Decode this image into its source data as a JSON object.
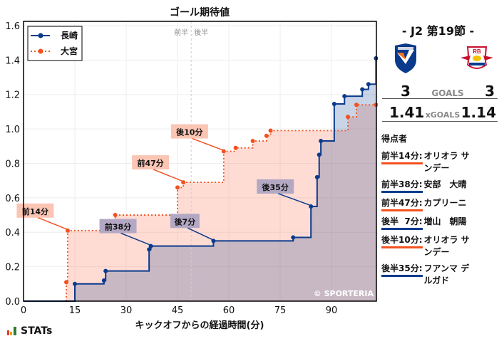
{
  "chart_data": {
    "type": "line",
    "title": "ゴール期待値",
    "xlabel": "キックオフからの経過時間(分)",
    "ylabel": "",
    "xlim": [
      0,
      103
    ],
    "ylim": [
      0,
      1.62
    ],
    "xticks": [
      0,
      15,
      30,
      45,
      60,
      75,
      90
    ],
    "yticks": [
      "0.0",
      "0.2",
      "0.4",
      "0.6",
      "0.8",
      "1.0",
      "1.2",
      "1.4",
      "1.6"
    ],
    "grid": true,
    "legend_position": "upper left",
    "half_marker": {
      "x": 49,
      "labels": [
        "前半",
        "後半"
      ]
    },
    "watermark": "© SPORTERIA",
    "series": [
      {
        "name": "長崎",
        "color": "#0a3a8c",
        "style": "solid step",
        "points": [
          [
            15,
            0.1
          ],
          [
            23.5,
            0.12
          ],
          [
            24,
            0.175
          ],
          [
            36.7,
            0.3
          ],
          [
            37.2,
            0.32
          ],
          [
            55.5,
            0.35
          ],
          [
            78.8,
            0.37
          ],
          [
            84,
            0.55
          ],
          [
            85.8,
            0.72
          ],
          [
            86.4,
            0.85
          ],
          [
            86.9,
            0.93
          ],
          [
            90.8,
            1.145
          ],
          [
            93.8,
            1.19
          ],
          [
            99,
            1.23
          ],
          [
            100.8,
            1.26
          ],
          [
            103,
            1.41
          ]
        ]
      },
      {
        "name": "大宮",
        "color": "#f4511e",
        "style": "dotted step",
        "points": [
          [
            12.5,
            0.11
          ],
          [
            12.9,
            0.41
          ],
          [
            24.6,
            0.45
          ],
          [
            26.8,
            0.5
          ],
          [
            45,
            0.66
          ],
          [
            46.7,
            0.69
          ],
          [
            58.5,
            0.87
          ],
          [
            62,
            0.89
          ],
          [
            67,
            0.93
          ],
          [
            71,
            0.96
          ],
          [
            72.2,
            0.99
          ],
          [
            94.8,
            1.07
          ],
          [
            97.3,
            1.14
          ],
          [
            103,
            1.14
          ]
        ]
      }
    ],
    "annotations": [
      {
        "text": "前14分",
        "team": "大宮",
        "x": 13,
        "y": 0.41
      },
      {
        "text": "前38分",
        "team": "長崎",
        "x": 37.2,
        "y": 0.32
      },
      {
        "text": "前47分",
        "team": "大宮",
        "x": 46.7,
        "y": 0.69
      },
      {
        "text": "後7分",
        "team": "長崎",
        "x": 55.5,
        "y": 0.35
      },
      {
        "text": "後10分",
        "team": "大宮",
        "x": 58.5,
        "y": 0.87
      },
      {
        "text": "後35分",
        "team": "長崎",
        "x": 84,
        "y": 0.55
      }
    ]
  },
  "match": {
    "round": "-  J2 第19節  -",
    "home": {
      "name": "長崎",
      "goals": "3",
      "xg": "1.41",
      "color": "#0a3a8c"
    },
    "away": {
      "name": "大宮",
      "goals": "3",
      "xg": "1.14",
      "color": "#f4511e"
    },
    "goals_label": "GOALS",
    "xgoals_label": "xGOALS"
  },
  "scorers": {
    "header": "得点者",
    "items": [
      {
        "time": "前半 14分",
        "name": "オリオラ サンデー",
        "team": "away"
      },
      {
        "time": "前半 38分",
        "name": "安部　大晴",
        "team": "home"
      },
      {
        "time": "前半 47分",
        "name": "カプリーニ",
        "team": "away"
      },
      {
        "time": "後半   7分",
        "name": "増山　朝陽",
        "team": "home"
      },
      {
        "time": "後半 10分",
        "name": "オリオラ サンデー",
        "team": "away"
      },
      {
        "time": "後半 35分",
        "name": "フアンマ デルガド",
        "team": "home"
      }
    ]
  },
  "brand": {
    "logo_text": "STATs"
  }
}
